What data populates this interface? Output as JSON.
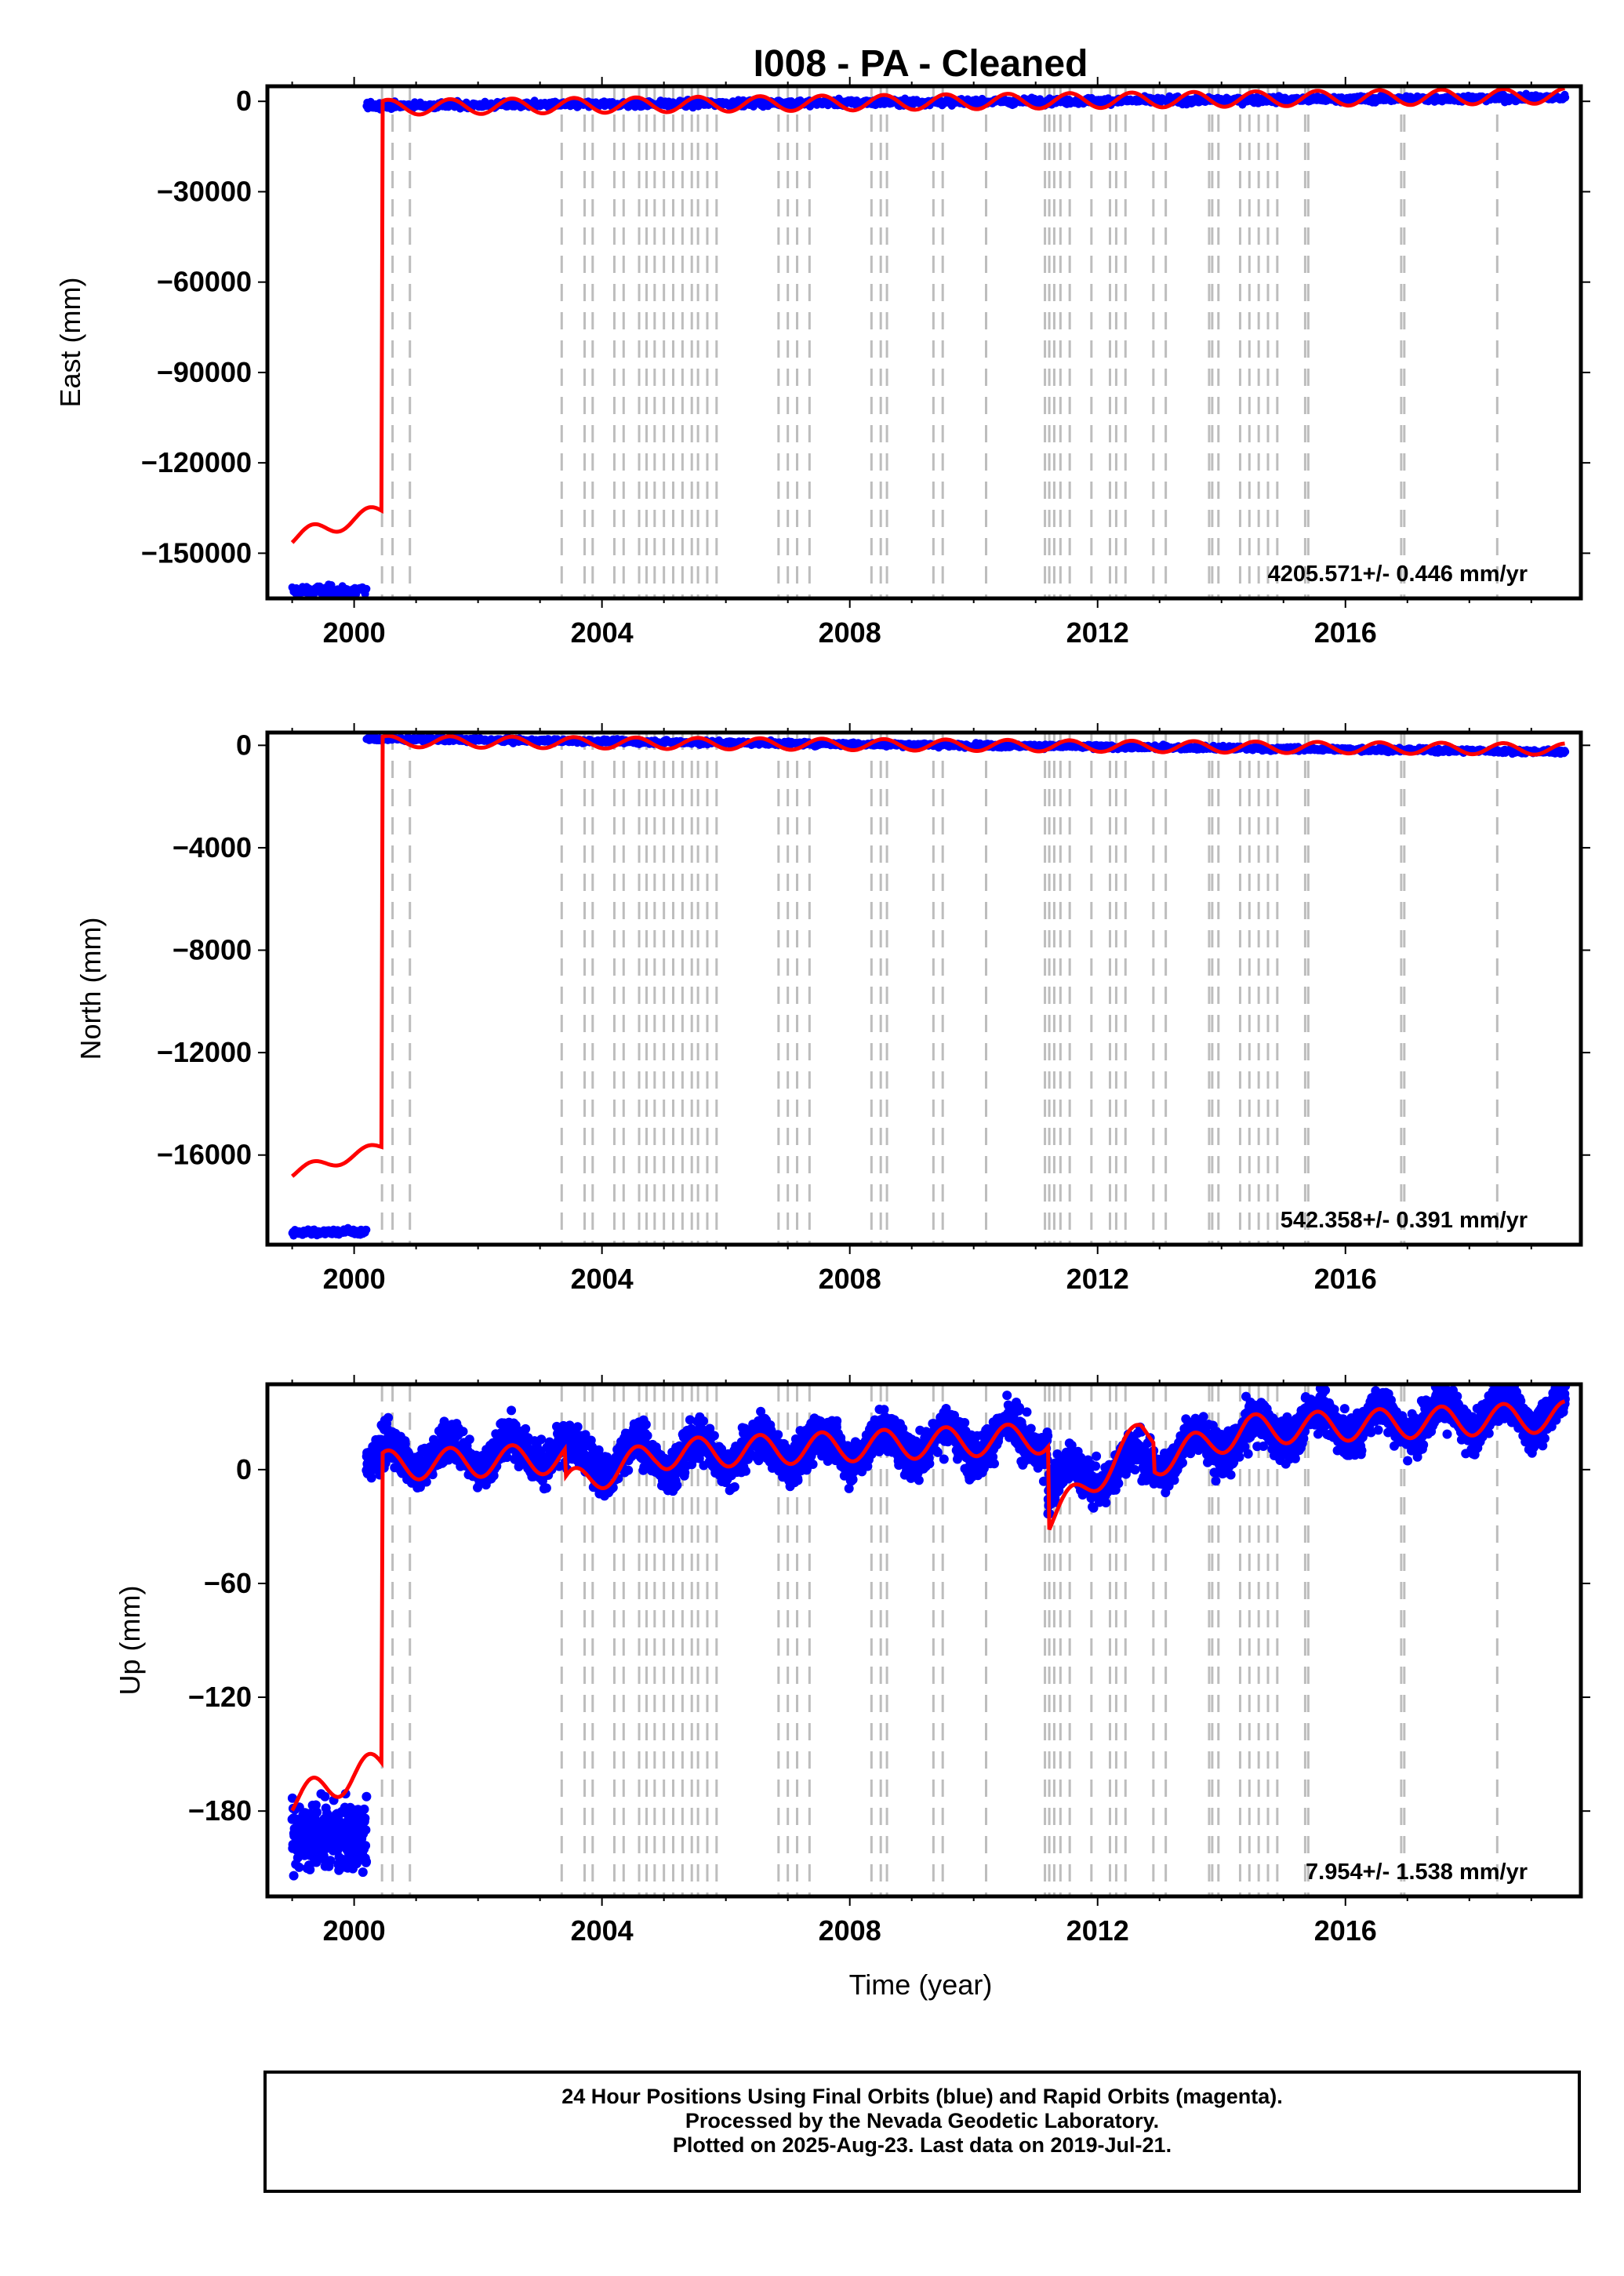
{
  "title": "I008  - PA - Cleaned",
  "xlabel": "Time (year)",
  "footer": {
    "line1": "24 Hour Positions Using Final Orbits (blue) and Rapid Orbits (magenta).",
    "line2": "Processed by the Nevada Geodetic Laboratory.",
    "line3": "Plotted on 2025-Aug-23. Last data on 2019-Jul-21."
  },
  "colors": {
    "final": "#0000ff",
    "model": "#ff0000",
    "event_line": "#bdbdbd",
    "frame": "#000000"
  },
  "chart_data": [
    {
      "type": "scatter",
      "ylabel": "East (mm)",
      "rate_text": "4205.571+/- 0.446 mm/yr",
      "xlim": [
        1998.6,
        2019.8
      ],
      "ylim": [
        -165000,
        5000
      ],
      "xticks": [
        2000,
        2004,
        2008,
        2012,
        2016
      ],
      "yticks": [
        0,
        -30000,
        -60000,
        -90000,
        -120000,
        -150000
      ],
      "series": [
        {
          "role": "final",
          "segments": [
            {
              "x": [
                1999.0,
                2000.2
              ],
              "y": [
                -162500,
                -162500
              ],
              "spread": 1500
            },
            {
              "x": [
                2000.2,
                2019.55
              ],
              "y": [
                -1500,
                1200
              ],
              "spread": 900
            }
          ]
        },
        {
          "role": "model",
          "offset": 135800,
          "jump": 2000.45,
          "amp": 2500,
          "x_end": 2019.55,
          "pre": {
            "x": [
              1999.0,
              2000.45
            ],
            "y": [
              -145000,
              -136000
            ]
          },
          "post": {
            "x": [
              2000.45,
              2019.55
            ],
            "y": [
              -2000,
              1800
            ]
          }
        }
      ]
    },
    {
      "type": "scatter",
      "ylabel": "North (mm)",
      "rate_text": "542.358+/- 0.391 mm/yr",
      "xlim": [
        1998.6,
        2019.8
      ],
      "ylim": [
        -19500,
        500
      ],
      "xticks": [
        2000,
        2004,
        2008,
        2012,
        2016
      ],
      "yticks": [
        0,
        -4000,
        -8000,
        -12000,
        -16000
      ],
      "series": [
        {
          "role": "final",
          "segments": [
            {
              "x": [
                1999.0,
                2000.2
              ],
              "y": [
                -19000,
                -19000
              ],
              "spread": 120
            },
            {
              "x": [
                2000.2,
                2019.55
              ],
              "y": [
                250,
                -250
              ],
              "spread": 70
            }
          ]
        },
        {
          "role": "model",
          "offset": 15800,
          "jump": 2000.45,
          "amp": 220,
          "x_end": 2019.55,
          "pre": {
            "x": [
              1999.0,
              2000.45
            ],
            "y": [
              -16700,
              -15700
            ]
          },
          "post": {
            "x": [
              2000.45,
              2019.55
            ],
            "y": [
              150,
              -150
            ]
          }
        }
      ]
    },
    {
      "type": "scatter",
      "ylabel": "Up (mm)",
      "rate_text": "7.954+/- 1.538 mm/yr",
      "xlim": [
        1998.6,
        2019.8
      ],
      "ylim": [
        -225,
        45
      ],
      "xticks": [
        2000,
        2004,
        2008,
        2012,
        2016
      ],
      "yticks": [
        0,
        -60,
        -120,
        -180
      ],
      "series": [
        {
          "role": "final",
          "segments": [
            {
              "x": [
                1999.0,
                2000.2
              ],
              "y": [
                -193,
                -193
              ],
              "spread": 14
            },
            {
              "x": [
                2000.2,
                2019.55
              ],
              "y": [
                0,
                30
              ],
              "spread": 9
            }
          ]
        },
        {
          "role": "model",
          "offset": 160,
          "jump": 2000.45,
          "amp": 8,
          "x_end": 2019.55,
          "pre": {
            "x": [
              1999.0,
              2000.45
            ],
            "y": [
              -175,
              -155
            ]
          },
          "post": {
            "x": [
              2000.45,
              2019.55
            ],
            "y": [
              2,
              28
            ]
          },
          "breaks": [
            {
              "x": 2003.4,
              "dy": -15
            },
            {
              "x": 2011.2,
              "dy": -45
            },
            {
              "x": 2012.9,
              "dy": -15
            }
          ]
        }
      ]
    }
  ],
  "event_lines": [
    2000.45,
    2000.62,
    2000.9,
    2003.35,
    2003.72,
    2003.85,
    2004.2,
    2004.35,
    2004.6,
    2004.72,
    2004.85,
    2005.0,
    2005.15,
    2005.3,
    2005.45,
    2005.55,
    2005.7,
    2005.85,
    2006.85,
    2007.0,
    2007.15,
    2007.35,
    2008.35,
    2008.5,
    2008.6,
    2009.35,
    2009.5,
    2010.2,
    2011.15,
    2011.22,
    2011.3,
    2011.4,
    2011.55,
    2011.9,
    2012.2,
    2012.3,
    2012.45,
    2012.9,
    2013.1,
    2013.8,
    2013.85,
    2013.95,
    2014.3,
    2014.45,
    2014.6,
    2014.75,
    2014.9,
    2015.35,
    2015.4,
    2016.9,
    2016.95,
    2018.45
  ]
}
